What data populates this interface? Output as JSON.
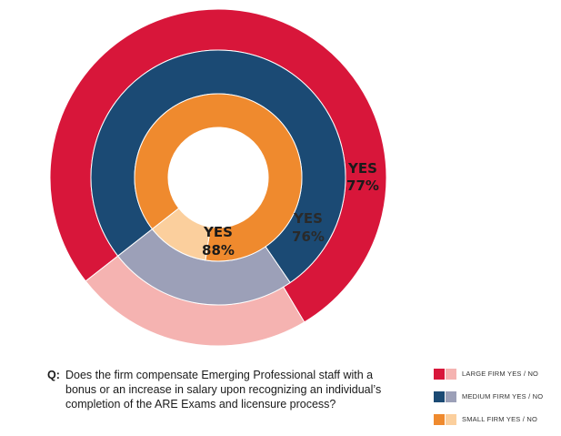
{
  "chart_data": {
    "type": "pie",
    "variant": "concentric-donut",
    "title": "",
    "series": [
      {
        "name": "LARGE FIRM YES / NO",
        "ring": "outer",
        "categories": [
          "YES",
          "NO"
        ],
        "values": [
          77,
          23
        ],
        "colors": [
          "#d8163a",
          "#f5b3b1"
        ],
        "label": {
          "title": "YES",
          "value": "77%"
        }
      },
      {
        "name": "MEDIUM FIRM YES / NO",
        "ring": "middle",
        "categories": [
          "YES",
          "NO"
        ],
        "values": [
          76,
          24
        ],
        "colors": [
          "#1b4a74",
          "#9ca0b8"
        ],
        "label": {
          "title": "YES",
          "value": "76%"
        }
      },
      {
        "name": "SMALL FIRM YES / NO",
        "ring": "inner",
        "categories": [
          "YES",
          "NO"
        ],
        "values": [
          88,
          12
        ],
        "colors": [
          "#ef8a2e",
          "#fbcf9d"
        ],
        "label": {
          "title": "YES",
          "value": "88%"
        }
      }
    ]
  },
  "question": {
    "prefix": "Q:",
    "text": "Does the firm compensate Emerging Professional staff with a bonus or an increase in salary upon recognizing an individual’s completion of the ARE Exams and licensure process?"
  },
  "legend": [
    {
      "label": "LARGE FIRM YES / NO",
      "colors": [
        "#d8163a",
        "#f5b3b1"
      ]
    },
    {
      "label": "MEDIUM FIRM YES / NO",
      "colors": [
        "#1b4a74",
        "#9ca0b8"
      ]
    },
    {
      "label": "SMALL FIRM YES / NO",
      "colors": [
        "#ef8a2e",
        "#fbcf9d"
      ]
    }
  ]
}
